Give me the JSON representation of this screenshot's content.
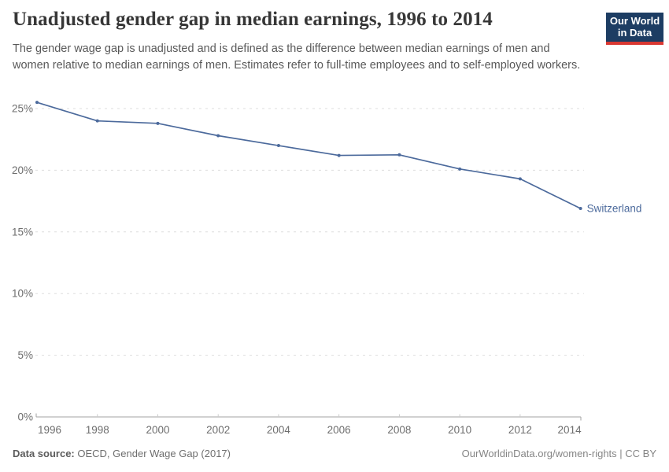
{
  "header": {
    "title": "Unadjusted gender gap in median earnings, 1996 to 2014",
    "subtitle": "The gender wage gap is unadjusted and is defined as the difference between median earnings of men and women relative to median earnings of men. Estimates refer to full-time employees and to self-employed workers.",
    "logo": {
      "line1": "Our World",
      "line2": "in Data"
    }
  },
  "chart_data": {
    "type": "line",
    "title": "Unadjusted gender gap in median earnings, 1996 to 2014",
    "x": [
      1996,
      1998,
      2000,
      2002,
      2004,
      2006,
      2008,
      2010,
      2012,
      2014
    ],
    "series": [
      {
        "name": "Switzerland",
        "values": [
          25.5,
          24.0,
          23.8,
          22.8,
          22.0,
          21.2,
          21.25,
          20.1,
          19.3,
          16.9
        ],
        "color": "#4c6a9c"
      }
    ],
    "xlabel": "",
    "ylabel": "",
    "ylim": [
      0,
      25
    ],
    "yticks": [
      0,
      5,
      10,
      15,
      20,
      25
    ],
    "ytick_suffix": "%",
    "xticks": [
      1996,
      1998,
      2000,
      2002,
      2004,
      2006,
      2008,
      2010,
      2012,
      2014
    ],
    "grid": "horizontal-dashed",
    "legend_position": "end-of-line-label"
  },
  "footer": {
    "source_label": "Data source:",
    "source_text": "OECD, Gender Wage Gap (2017)",
    "credit": "OurWorldinData.org/women-rights | CC BY"
  },
  "colors": {
    "line": "#4c6a9c",
    "logo_background": "#1d3d63",
    "logo_underline": "#d93832",
    "gridline": "#dddddd",
    "axis": "#a3a3a3",
    "title_text": "#373737",
    "subtitle_text": "#595959",
    "tick_text": "#6e6e6e"
  }
}
